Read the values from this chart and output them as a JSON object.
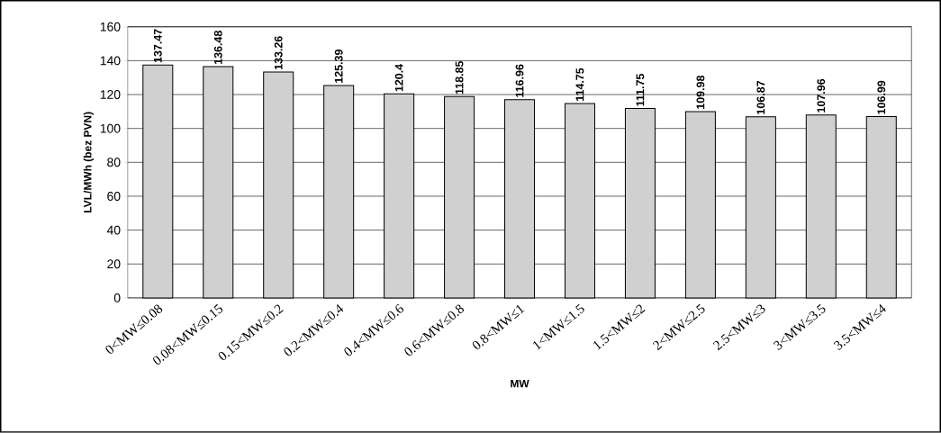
{
  "chart_data": {
    "type": "bar",
    "xlabel": "MW",
    "ylabel": "LVL/MWh (bez PVN)",
    "categories": [
      "0<MW≤0.08",
      "0.08<MW≤0.15",
      "0.15<MW≤0.2",
      "0.2<MW≤0.4",
      "0.4<MW≤0.6",
      "0.6<MW≤0.8",
      "0.8<MW≤1",
      "1<MW≤1.5",
      "1.5<MW≤2",
      "2<MW≤2.5",
      "2.5<MW≤3",
      "3<MW≤3.5",
      "3.5<MW≤4"
    ],
    "values": [
      137.47,
      136.48,
      133.26,
      125.39,
      120.4,
      118.85,
      116.96,
      114.75,
      111.75,
      109.98,
      106.87,
      107.96,
      106.99
    ],
    "color": "#d0d0d0",
    "ylim": [
      0,
      160
    ],
    "yticks": [
      0,
      20,
      40,
      60,
      80,
      100,
      120,
      140,
      160
    ],
    "grid": "y",
    "data_labels": true
  }
}
